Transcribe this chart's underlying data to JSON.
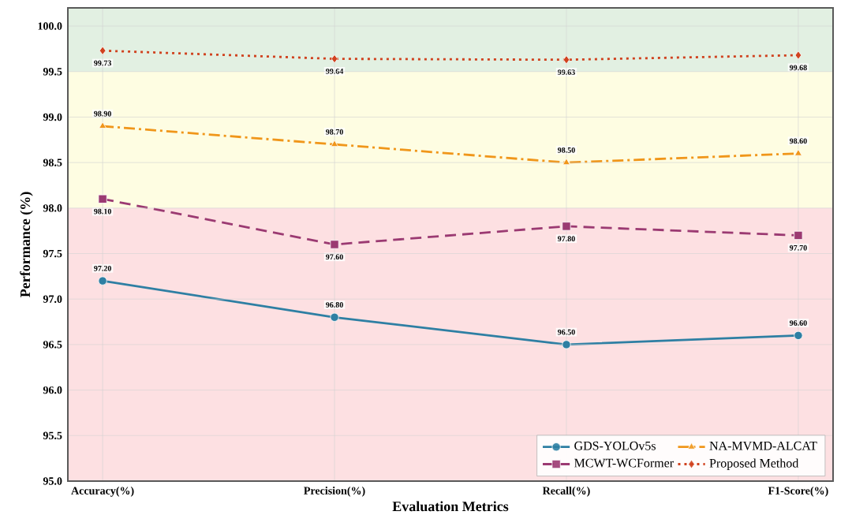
{
  "chart_data": {
    "type": "line",
    "xlabel": "Evaluation Metrics",
    "ylabel": "Performance (%)",
    "categories": [
      "Accuracy(%)",
      "Precision(%)",
      "Recall(%)",
      "F1-Score(%)"
    ],
    "series": [
      {
        "name": "GDS-YOLOv5s",
        "color": "#2e7fa3",
        "marker": "circle",
        "line_style": "solid",
        "values": [
          97.2,
          96.8,
          96.5,
          96.6
        ],
        "value_labels": [
          "97.20",
          "96.80",
          "96.50",
          "96.60"
        ]
      },
      {
        "name": "MCWT-WCFormer",
        "color": "#9b3a72",
        "marker": "square",
        "line_style": "dashed",
        "values": [
          98.1,
          97.6,
          97.8,
          97.7
        ],
        "value_labels": [
          "98.10",
          "97.60",
          "97.80",
          "97.70"
        ]
      },
      {
        "name": "NA-MVMD-ALCAT",
        "color": "#f0961a",
        "marker": "triangle",
        "line_style": "dashdot",
        "values": [
          98.9,
          98.7,
          98.5,
          98.6
        ],
        "value_labels": [
          "98.90",
          "98.70",
          "98.50",
          "98.60"
        ]
      },
      {
        "name": "Proposed Method",
        "color": "#d0421f",
        "marker": "diamond",
        "line_style": "dotted",
        "values": [
          99.73,
          99.64,
          99.63,
          99.68
        ],
        "value_labels": [
          "99.73",
          "99.64",
          "99.63",
          "99.68"
        ]
      }
    ],
    "ylim": [
      95,
      100.2
    ],
    "yticks": [
      {
        "value": 95,
        "label": "95.0"
      },
      {
        "value": 95.5,
        "label": "95.5"
      },
      {
        "value": 96,
        "label": "96.0"
      },
      {
        "value": 96.5,
        "label": "96.5"
      },
      {
        "value": 97,
        "label": "97.0"
      },
      {
        "value": 97.5,
        "label": "97.5"
      },
      {
        "value": 98,
        "label": "98.0"
      },
      {
        "value": 98.5,
        "label": "98.5"
      },
      {
        "value": 99,
        "label": "99.0"
      },
      {
        "value": 99.5,
        "label": "99.5"
      },
      {
        "value": 100,
        "label": "100.0"
      }
    ],
    "bands": [
      {
        "axis": "y",
        "from": 95,
        "to": 98,
        "color": "#fde0e2"
      },
      {
        "axis": "y",
        "from": 98,
        "to": 99.5,
        "color": "#fefde2"
      },
      {
        "axis": "y",
        "from": 99.5,
        "to": 100.2,
        "color": "#e2f0e2"
      }
    ],
    "grid": true,
    "legend": "bottom right"
  }
}
